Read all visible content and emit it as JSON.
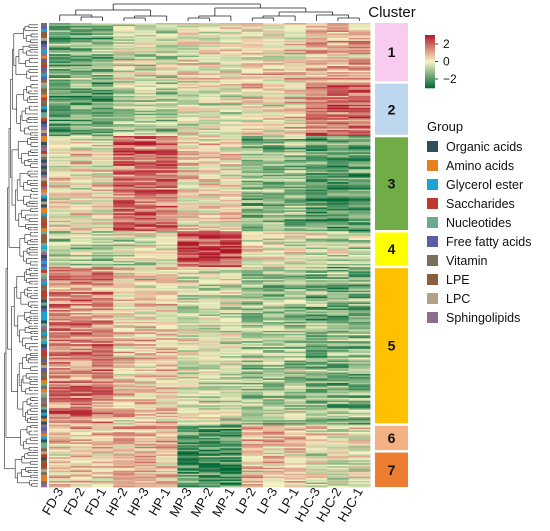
{
  "chart_data": {
    "type": "heatmap",
    "columns": [
      "FD-3",
      "FD-2",
      "FD-1",
      "HP-2",
      "HP-3",
      "HP-1",
      "MP-3",
      "MP-2",
      "MP-1",
      "LP-2",
      "LP-3",
      "LP-1",
      "HJC-3",
      "HJC-2",
      "HJC-1"
    ],
    "scale": {
      "min": -2,
      "max": 2,
      "ticks": [
        "2",
        "0",
        "−2"
      ],
      "colors": [
        "#006837",
        "#f7f3c3",
        "#b2182b"
      ]
    },
    "cluster_title": "Cluster",
    "clusters": [
      {
        "label": "1",
        "color": "#f8ccee",
        "rows": 40,
        "profile": [
          -1.0,
          -1.0,
          -1.0,
          -0.3,
          -0.3,
          -0.3,
          0.0,
          0.0,
          0.0,
          0.2,
          0.2,
          0.2,
          0.6,
          0.6,
          0.6
        ]
      },
      {
        "label": "2",
        "color": "#bdd7ee",
        "rows": 36,
        "profile": [
          -1.1,
          -1.1,
          -1.1,
          -0.5,
          -0.5,
          -0.5,
          -0.2,
          -0.2,
          -0.2,
          0.3,
          0.3,
          0.3,
          1.3,
          1.3,
          1.3
        ]
      },
      {
        "label": "3",
        "color": "#70ad47",
        "rows": 64,
        "profile": [
          0.1,
          0.1,
          0.1,
          1.2,
          1.2,
          1.2,
          0.2,
          0.2,
          0.2,
          -0.8,
          -0.8,
          -0.8,
          -1.3,
          -1.3,
          -1.3
        ]
      },
      {
        "label": "4",
        "color": "#ffff00",
        "rows": 24,
        "profile": [
          -0.6,
          -0.6,
          -0.6,
          -0.3,
          -0.3,
          -0.3,
          1.5,
          1.5,
          1.5,
          -0.1,
          -0.1,
          -0.1,
          -0.4,
          -0.4,
          -0.4
        ]
      },
      {
        "label": "5",
        "color": "#ffc000",
        "rows": 106,
        "profile": [
          1.0,
          1.0,
          1.0,
          0.3,
          0.3,
          0.3,
          -0.2,
          -0.2,
          -0.2,
          -0.6,
          -0.6,
          -0.6,
          -0.9,
          -0.9,
          -0.9
        ]
      },
      {
        "label": "6",
        "color": "#f4b183",
        "rows": 18,
        "profile": [
          0.4,
          0.4,
          0.4,
          0.5,
          0.5,
          0.5,
          -1.2,
          -1.2,
          -1.2,
          0.5,
          0.5,
          0.5,
          0.0,
          0.0,
          0.0
        ]
      },
      {
        "label": "7",
        "color": "#ed7d31",
        "rows": 24,
        "profile": [
          0.3,
          0.3,
          0.3,
          0.5,
          0.5,
          0.5,
          -1.4,
          -1.4,
          -1.4,
          0.3,
          0.3,
          0.3,
          -0.2,
          -0.2,
          -0.2
        ]
      }
    ],
    "group_title": "Group",
    "groups": [
      {
        "label": "Organic acids",
        "color": "#2f4f5a"
      },
      {
        "label": "Amino acids",
        "color": "#e67e22"
      },
      {
        "label": "Glycerol ester",
        "color": "#1ba3d6"
      },
      {
        "label": "Saccharides",
        "color": "#c0392b"
      },
      {
        "label": "Nucleotides",
        "color": "#6aab8e"
      },
      {
        "label": "Free fatty acids",
        "color": "#5b5ea6"
      },
      {
        "label": "Vitamin",
        "color": "#7a6f5c"
      },
      {
        "label": "LPE",
        "color": "#8b5e3c"
      },
      {
        "label": "LPC",
        "color": "#b5a08c"
      },
      {
        "label": "Sphingolipids",
        "color": "#8e6b8f"
      }
    ],
    "legend_placement": "right",
    "dendrograms": [
      "top",
      "left"
    ]
  }
}
